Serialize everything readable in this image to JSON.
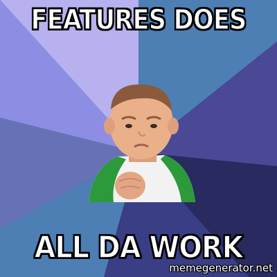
{
  "meme": {
    "top_text": "FEATURES DOES",
    "bottom_text": "ALL DA WORK",
    "watermark": "memegenerator.net"
  },
  "colors": {
    "ray_lavender": "#b7b1ef",
    "ray_periwinkle": "#8d8ee3",
    "ray_steel_blue": "#4d7fb4",
    "ray_slate_blue": "#6772b6",
    "ray_indigo": "#4a4995",
    "ray_navy": "#282a60",
    "shirt_green": "#2c9a3a",
    "shirt_white": "#f2f2f2",
    "skin": "#e9b08a",
    "hair": "#8a5a3a"
  }
}
